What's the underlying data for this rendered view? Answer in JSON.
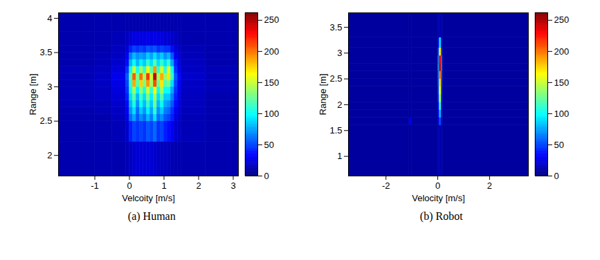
{
  "chart_data": [
    {
      "type": "heatmap",
      "caption": "(a) Human",
      "x_label": "Velcoity [m/s]",
      "y_label": "Range [m]",
      "xlim": [
        -2.05,
        3.15
      ],
      "ylim": [
        1.7,
        4.08
      ],
      "xticks": [
        -1,
        0,
        1,
        2,
        3
      ],
      "yticks": [
        2,
        2.5,
        3,
        3.5,
        4
      ],
      "x_edges": [
        -2.05,
        -1.0,
        -0.5,
        -0.1,
        0.0,
        0.1,
        0.2,
        0.3,
        0.4,
        0.5,
        0.6,
        0.7,
        0.8,
        0.9,
        1.0,
        1.1,
        1.2,
        1.3,
        1.4,
        1.5,
        2.2,
        3.15
      ],
      "y_edges": [
        1.7,
        2.2,
        2.5,
        2.6,
        2.7,
        2.8,
        2.9,
        3.0,
        3.1,
        3.2,
        3.3,
        3.4,
        3.5,
        3.6,
        3.8,
        4.08
      ],
      "values": [
        [
          12,
          12,
          12,
          14,
          18,
          20,
          22,
          22,
          22,
          22,
          22,
          20,
          18,
          16,
          16,
          14,
          14,
          12,
          12,
          12,
          12
        ],
        [
          12,
          12,
          14,
          20,
          40,
          50,
          45,
          50,
          45,
          55,
          50,
          60,
          45,
          50,
          40,
          35,
          30,
          20,
          18,
          14,
          12
        ],
        [
          12,
          12,
          16,
          25,
          60,
          75,
          55,
          70,
          60,
          80,
          65,
          90,
          60,
          70,
          55,
          50,
          40,
          25,
          20,
          14,
          12
        ],
        [
          12,
          14,
          18,
          30,
          70,
          90,
          60,
          85,
          70,
          95,
          75,
          110,
          70,
          85,
          65,
          60,
          45,
          30,
          22,
          15,
          12
        ],
        [
          14,
          14,
          20,
          35,
          80,
          105,
          70,
          100,
          80,
          110,
          85,
          125,
          80,
          100,
          75,
          70,
          55,
          35,
          25,
          16,
          12
        ],
        [
          14,
          16,
          22,
          40,
          90,
          120,
          80,
          115,
          90,
          130,
          95,
          140,
          90,
          120,
          85,
          85,
          65,
          40,
          28,
          16,
          12
        ],
        [
          14,
          16,
          24,
          45,
          100,
          140,
          95,
          135,
          105,
          150,
          110,
          165,
          100,
          140,
          100,
          100,
          75,
          45,
          30,
          18,
          14
        ],
        [
          14,
          18,
          26,
          50,
          110,
          185,
          120,
          175,
          130,
          190,
          140,
          210,
          125,
          170,
          120,
          130,
          90,
          50,
          32,
          18,
          14
        ],
        [
          14,
          18,
          28,
          55,
          120,
          205,
          130,
          200,
          140,
          215,
          150,
          245,
          140,
          185,
          135,
          170,
          110,
          55,
          35,
          20,
          14
        ],
        [
          14,
          16,
          24,
          45,
          100,
          150,
          105,
          140,
          110,
          160,
          120,
          190,
          110,
          150,
          110,
          160,
          100,
          45,
          30,
          18,
          14
        ],
        [
          12,
          14,
          20,
          35,
          80,
          100,
          80,
          95,
          85,
          110,
          90,
          120,
          90,
          110,
          90,
          110,
          75,
          40,
          25,
          16,
          12
        ],
        [
          12,
          14,
          18,
          30,
          65,
          80,
          70,
          75,
          70,
          85,
          75,
          90,
          75,
          85,
          70,
          80,
          55,
          30,
          22,
          15,
          12
        ],
        [
          12,
          12,
          16,
          22,
          40,
          50,
          45,
          50,
          45,
          55,
          50,
          55,
          45,
          50,
          45,
          45,
          35,
          22,
          18,
          14,
          12
        ],
        [
          12,
          12,
          14,
          16,
          22,
          25,
          25,
          25,
          25,
          28,
          25,
          28,
          25,
          25,
          22,
          22,
          20,
          16,
          14,
          12,
          12
        ],
        [
          12,
          12,
          12,
          12,
          12,
          12,
          12,
          12,
          12,
          12,
          12,
          12,
          12,
          12,
          12,
          12,
          12,
          12,
          12,
          12,
          12
        ]
      ],
      "colorbar": {
        "range": [
          0,
          262
        ],
        "ticks": [
          0,
          50,
          100,
          150,
          200,
          250
        ]
      }
    },
    {
      "type": "heatmap",
      "caption": "(b) Robot",
      "x_label": "Velocity [m/s]",
      "y_label": "Range [m]",
      "xlim": [
        -3.45,
        3.5
      ],
      "ylim": [
        0.62,
        3.78
      ],
      "xticks": [
        -2,
        0,
        2
      ],
      "yticks": [
        1,
        1.5,
        2,
        2.5,
        3,
        3.5
      ],
      "x_edges": [
        -3.45,
        -1.1,
        -1.0,
        0.02,
        0.07,
        0.14,
        0.19,
        3.5
      ],
      "y_edges": [
        0.62,
        1.6,
        1.75,
        1.9,
        2.05,
        2.2,
        2.35,
        2.5,
        2.65,
        2.8,
        2.95,
        3.1,
        3.3,
        3.78
      ],
      "values": [
        [
          8,
          8,
          8,
          10,
          14,
          10,
          8
        ],
        [
          8,
          25,
          8,
          20,
          50,
          20,
          8
        ],
        [
          8,
          8,
          8,
          30,
          80,
          30,
          8
        ],
        [
          8,
          8,
          8,
          35,
          110,
          35,
          8
        ],
        [
          8,
          8,
          8,
          45,
          140,
          45,
          8
        ],
        [
          8,
          8,
          8,
          50,
          160,
          50,
          8
        ],
        [
          8,
          8,
          8,
          55,
          175,
          55,
          8
        ],
        [
          8,
          8,
          8,
          60,
          200,
          60,
          8
        ],
        [
          8,
          8,
          8,
          70,
          240,
          70,
          8
        ],
        [
          8,
          8,
          8,
          65,
          230,
          65,
          8
        ],
        [
          8,
          8,
          8,
          50,
          170,
          50,
          8
        ],
        [
          8,
          8,
          8,
          30,
          90,
          30,
          8
        ],
        [
          8,
          8,
          8,
          10,
          14,
          10,
          8
        ]
      ],
      "colorbar": {
        "range": [
          0,
          262
        ],
        "ticks": [
          0,
          50,
          100,
          150,
          200,
          250
        ]
      }
    }
  ]
}
